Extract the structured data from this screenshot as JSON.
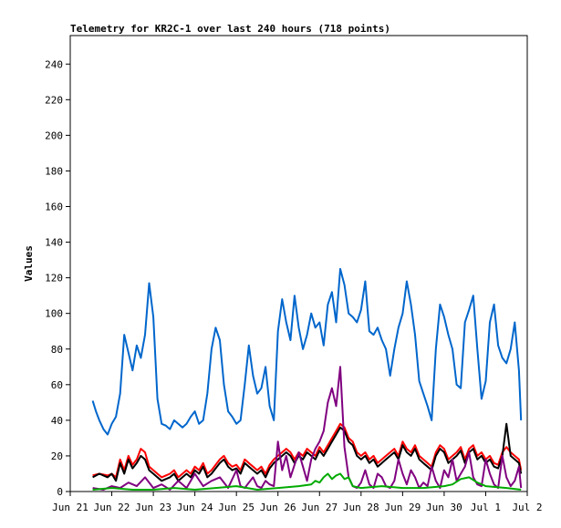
{
  "chart_data": {
    "type": "line",
    "title": "Telemetry for KR2C-1 over last 240 hours (718 points)",
    "xlabel": "",
    "ylabel": "Values",
    "ylim": [
      0,
      256
    ],
    "yticks": [
      0,
      20,
      40,
      60,
      80,
      100,
      120,
      140,
      160,
      180,
      200,
      220,
      240
    ],
    "xticks": [
      "Jun 21",
      "Jun 22",
      "Jun 23",
      "Jun 24",
      "Jun 25",
      "Jun 26",
      "Jun 27",
      "Jun 28",
      "Jun 29",
      "Jun 30",
      "Jul 1",
      "Jul 2"
    ],
    "x_unit": "days (tick index from Jun 21)",
    "grid": false,
    "series": [
      {
        "color": "#0066cc",
        "x": [
          0.54,
          0.62,
          0.7,
          0.8,
          0.9,
          1.0,
          1.1,
          1.2,
          1.3,
          1.4,
          1.5,
          1.6,
          1.7,
          1.8,
          1.9,
          2.0,
          2.1,
          2.2,
          2.3,
          2.4,
          2.5,
          2.6,
          2.7,
          2.8,
          2.9,
          3.0,
          3.1,
          3.2,
          3.3,
          3.4,
          3.5,
          3.6,
          3.7,
          3.8,
          3.9,
          4.0,
          4.1,
          4.2,
          4.3,
          4.4,
          4.5,
          4.6,
          4.7,
          4.8,
          4.9,
          5.0,
          5.1,
          5.2,
          5.3,
          5.4,
          5.5,
          5.6,
          5.7,
          5.8,
          5.9,
          6.0,
          6.1,
          6.2,
          6.3,
          6.4,
          6.5,
          6.6,
          6.7,
          6.8,
          6.9,
          7.0,
          7.1,
          7.2,
          7.3,
          7.4,
          7.5,
          7.6,
          7.7,
          7.8,
          7.9,
          8.0,
          8.1,
          8.2,
          8.3,
          8.4,
          8.5,
          8.6,
          8.7,
          8.8,
          8.9,
          9.0,
          9.1,
          9.2,
          9.3,
          9.4,
          9.5,
          9.6,
          9.7,
          9.8,
          9.9,
          10.0,
          10.1,
          10.2,
          10.3,
          10.4,
          10.5,
          10.6,
          10.7,
          10.8,
          10.85
        ],
        "values": [
          51,
          45,
          40,
          35,
          32,
          38,
          42,
          55,
          88,
          78,
          68,
          82,
          75,
          88,
          117,
          98,
          52,
          38,
          37,
          35,
          40,
          38,
          36,
          38,
          42,
          45,
          38,
          40,
          55,
          80,
          92,
          85,
          60,
          45,
          42,
          38,
          40,
          60,
          82,
          65,
          55,
          58,
          70,
          48,
          40,
          90,
          108,
          95,
          85,
          110,
          92,
          80,
          88,
          100,
          92,
          95,
          82,
          105,
          112,
          95,
          125,
          116,
          100,
          98,
          95,
          102,
          118,
          90,
          88,
          92,
          85,
          80,
          65,
          80,
          92,
          100,
          118,
          105,
          88,
          62,
          55,
          48,
          40,
          80,
          105,
          98,
          88,
          80,
          60,
          58,
          95,
          102,
          110,
          80,
          52,
          62,
          95,
          105,
          82,
          75,
          72,
          80,
          95,
          68,
          40
        ]
      },
      {
        "color": "#ff0000",
        "x": [
          0.54,
          0.7,
          0.9,
          1.0,
          1.1,
          1.2,
          1.3,
          1.4,
          1.5,
          1.6,
          1.7,
          1.8,
          1.9,
          2.0,
          2.1,
          2.2,
          2.3,
          2.4,
          2.5,
          2.6,
          2.7,
          2.8,
          2.9,
          3.0,
          3.1,
          3.2,
          3.3,
          3.4,
          3.5,
          3.6,
          3.7,
          3.8,
          3.9,
          4.0,
          4.1,
          4.2,
          4.3,
          4.4,
          4.5,
          4.6,
          4.7,
          4.8,
          4.9,
          5.0,
          5.1,
          5.2,
          5.3,
          5.4,
          5.5,
          5.6,
          5.7,
          5.8,
          5.9,
          6.0,
          6.1,
          6.2,
          6.3,
          6.4,
          6.5,
          6.6,
          6.7,
          6.8,
          6.9,
          7.0,
          7.1,
          7.2,
          7.3,
          7.4,
          7.5,
          7.6,
          7.7,
          7.8,
          7.9,
          8.0,
          8.1,
          8.2,
          8.3,
          8.4,
          8.5,
          8.6,
          8.7,
          8.8,
          8.9,
          9.0,
          9.1,
          9.2,
          9.3,
          9.4,
          9.5,
          9.6,
          9.7,
          9.8,
          9.9,
          10.0,
          10.1,
          10.2,
          10.3,
          10.4,
          10.5,
          10.6,
          10.7,
          10.8,
          10.85
        ],
        "values": [
          9,
          10,
          9,
          10,
          8,
          18,
          12,
          20,
          15,
          18,
          24,
          22,
          14,
          12,
          10,
          8,
          9,
          10,
          12,
          8,
          10,
          12,
          10,
          14,
          12,
          16,
          10,
          12,
          15,
          18,
          20,
          16,
          14,
          15,
          12,
          18,
          16,
          14,
          12,
          14,
          10,
          15,
          18,
          20,
          22,
          24,
          22,
          18,
          22,
          20,
          24,
          22,
          20,
          25,
          22,
          26,
          30,
          34,
          38,
          36,
          30,
          28,
          22,
          20,
          22,
          18,
          20,
          16,
          18,
          20,
          22,
          24,
          20,
          28,
          24,
          22,
          26,
          20,
          18,
          16,
          14,
          22,
          26,
          24,
          18,
          20,
          22,
          25,
          18,
          24,
          26,
          20,
          22,
          18,
          20,
          16,
          15,
          22,
          25,
          22,
          20,
          18,
          12
        ]
      },
      {
        "color": "#000000",
        "x": [
          0.54,
          0.7,
          0.9,
          1.0,
          1.1,
          1.2,
          1.3,
          1.4,
          1.5,
          1.6,
          1.7,
          1.8,
          1.9,
          2.0,
          2.1,
          2.2,
          2.3,
          2.4,
          2.5,
          2.6,
          2.7,
          2.8,
          2.9,
          3.0,
          3.1,
          3.2,
          3.3,
          3.4,
          3.5,
          3.6,
          3.7,
          3.8,
          3.9,
          4.0,
          4.1,
          4.2,
          4.3,
          4.4,
          4.5,
          4.6,
          4.7,
          4.8,
          4.9,
          5.0,
          5.1,
          5.2,
          5.3,
          5.4,
          5.5,
          5.6,
          5.7,
          5.8,
          5.9,
          6.0,
          6.1,
          6.2,
          6.3,
          6.4,
          6.5,
          6.6,
          6.7,
          6.8,
          6.9,
          7.0,
          7.1,
          7.2,
          7.3,
          7.4,
          7.5,
          7.6,
          7.7,
          7.8,
          7.9,
          8.0,
          8.1,
          8.2,
          8.3,
          8.4,
          8.5,
          8.6,
          8.7,
          8.8,
          8.9,
          9.0,
          9.1,
          9.2,
          9.3,
          9.4,
          9.5,
          9.6,
          9.7,
          9.8,
          9.9,
          10.0,
          10.1,
          10.2,
          10.3,
          10.4,
          10.5,
          10.6,
          10.7,
          10.8,
          10.85
        ],
        "values": [
          8,
          10,
          8,
          10,
          6,
          16,
          10,
          18,
          13,
          16,
          20,
          18,
          12,
          10,
          8,
          6,
          7,
          8,
          10,
          6,
          8,
          10,
          8,
          12,
          10,
          14,
          8,
          10,
          13,
          16,
          18,
          14,
          12,
          13,
          10,
          16,
          14,
          12,
          10,
          12,
          8,
          13,
          16,
          18,
          20,
          22,
          20,
          16,
          20,
          18,
          22,
          20,
          18,
          23,
          20,
          24,
          28,
          32,
          36,
          34,
          28,
          26,
          20,
          18,
          20,
          16,
          18,
          14,
          16,
          18,
          20,
          22,
          18,
          26,
          22,
          20,
          24,
          18,
          16,
          14,
          12,
          20,
          24,
          22,
          16,
          18,
          20,
          23,
          16,
          22,
          24,
          18,
          20,
          16,
          18,
          14,
          13,
          20,
          38,
          20,
          18,
          16,
          10
        ]
      },
      {
        "color": "#800080",
        "x": [
          0.54,
          0.8,
          1.0,
          1.2,
          1.4,
          1.6,
          1.8,
          2.0,
          2.2,
          2.4,
          2.6,
          2.8,
          3.0,
          3.2,
          3.4,
          3.6,
          3.8,
          4.0,
          4.1,
          4.2,
          4.3,
          4.4,
          4.5,
          4.6,
          4.7,
          4.8,
          4.9,
          5.0,
          5.1,
          5.2,
          5.3,
          5.4,
          5.5,
          5.6,
          5.7,
          5.8,
          5.9,
          6.0,
          6.1,
          6.2,
          6.3,
          6.4,
          6.5,
          6.6,
          6.7,
          6.8,
          6.9,
          7.0,
          7.1,
          7.2,
          7.3,
          7.4,
          7.5,
          7.6,
          7.7,
          7.8,
          7.9,
          8.0,
          8.1,
          8.2,
          8.3,
          8.4,
          8.5,
          8.6,
          8.7,
          8.8,
          8.9,
          9.0,
          9.1,
          9.2,
          9.3,
          9.4,
          9.5,
          9.6,
          9.7,
          9.8,
          9.9,
          10.0,
          10.1,
          10.2,
          10.3,
          10.4,
          10.5,
          10.6,
          10.7,
          10.8,
          10.85
        ],
        "values": [
          2,
          1,
          3,
          2,
          5,
          3,
          8,
          2,
          4,
          1,
          6,
          2,
          10,
          3,
          6,
          8,
          2,
          12,
          3,
          2,
          5,
          8,
          3,
          2,
          6,
          4,
          3,
          28,
          12,
          20,
          8,
          15,
          22,
          14,
          6,
          18,
          24,
          28,
          34,
          50,
          58,
          48,
          70,
          25,
          8,
          3,
          2,
          5,
          12,
          4,
          2,
          10,
          8,
          3,
          2,
          6,
          18,
          10,
          4,
          12,
          8,
          2,
          5,
          3,
          14,
          6,
          2,
          12,
          8,
          18,
          6,
          10,
          14,
          22,
          8,
          4,
          3,
          18,
          10,
          4,
          2,
          20,
          8,
          3,
          6,
          14,
          2
        ]
      },
      {
        "color": "#00aa00",
        "x": [
          0.54,
          1.0,
          1.5,
          2.0,
          2.5,
          3.0,
          3.5,
          4.0,
          4.5,
          5.0,
          5.5,
          5.8,
          5.9,
          6.0,
          6.1,
          6.2,
          6.3,
          6.4,
          6.5,
          6.6,
          6.7,
          6.8,
          7.0,
          7.5,
          8.0,
          8.5,
          9.0,
          9.2,
          9.4,
          9.6,
          9.8,
          10.0,
          10.5,
          10.85
        ],
        "values": [
          1,
          2,
          1,
          1,
          2,
          1,
          2,
          3,
          1,
          2,
          3,
          4,
          6,
          5,
          8,
          10,
          7,
          9,
          10,
          7,
          8,
          3,
          2,
          3,
          2,
          2,
          3,
          4,
          7,
          8,
          5,
          3,
          2,
          1
        ]
      }
    ]
  }
}
